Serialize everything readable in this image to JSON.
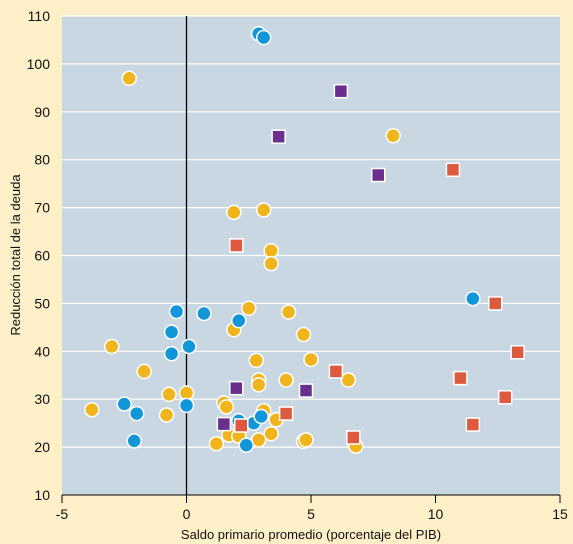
{
  "chart_data": {
    "type": "scatter",
    "title": "",
    "xlabel": "Saldo primario promedio (porcentaje del PIB)",
    "ylabel": "Reducción total de la deuda",
    "xlim": [
      -5,
      15
    ],
    "ylim": [
      10,
      110
    ],
    "x_ticks": [
      -5,
      0,
      5,
      10,
      15
    ],
    "y_ticks": [
      10,
      20,
      30,
      40,
      50,
      60,
      70,
      80,
      90,
      100,
      110
    ],
    "x_tick_labels": [
      "-5",
      "0",
      "5",
      "10",
      "15"
    ],
    "y_tick_labels": [
      "10",
      "20",
      "30",
      "40",
      "50",
      "60",
      "70",
      "80",
      "90",
      "100",
      "110"
    ],
    "grid": true,
    "zero_line_x": 0,
    "colors": {
      "plot_bg": "#c9d7e2",
      "grid": "#ffffff",
      "page_bg": "#fdf0c8",
      "yellow": "#f0b51c",
      "blue": "#1196d8",
      "purple": "#6a2f8c",
      "red": "#de5a3e"
    },
    "series": [
      {
        "marker": "circle",
        "color": "#f0b51c",
        "points": [
          [
            -2.3,
            97
          ],
          [
            8.3,
            85
          ],
          [
            1.9,
            69
          ],
          [
            3.1,
            69.5
          ],
          [
            3.4,
            61
          ],
          [
            3.4,
            58.3
          ],
          [
            2.5,
            49
          ],
          [
            4.1,
            48.2
          ],
          [
            1.9,
            44.5
          ],
          [
            4.7,
            43.5
          ],
          [
            -3.0,
            41
          ],
          [
            2.8,
            38.1
          ],
          [
            5.0,
            38.3
          ],
          [
            -1.7,
            35.8
          ],
          [
            2.9,
            34
          ],
          [
            4.0,
            34
          ],
          [
            6.5,
            34
          ],
          [
            2.9,
            33
          ],
          [
            -0.7,
            31
          ],
          [
            0.0,
            31.3
          ],
          [
            1.5,
            29.2
          ],
          [
            1.6,
            28.4
          ],
          [
            -3.8,
            27.8
          ],
          [
            3.1,
            27.6
          ],
          [
            -0.8,
            26.7
          ],
          [
            3.6,
            25.7
          ],
          [
            1.7,
            22.5
          ],
          [
            2.1,
            22.3
          ],
          [
            3.4,
            22.8
          ],
          [
            2.9,
            21.5
          ],
          [
            4.7,
            21.2
          ],
          [
            4.8,
            21.5
          ],
          [
            1.2,
            20.7
          ],
          [
            6.8,
            20.2
          ]
        ]
      },
      {
        "marker": "circle",
        "color": "#1196d8",
        "points": [
          [
            2.9,
            106.3
          ],
          [
            3.1,
            105.5
          ],
          [
            11.5,
            51
          ],
          [
            -0.4,
            48.3
          ],
          [
            0.7,
            47.9
          ],
          [
            2.1,
            46.4
          ],
          [
            -0.6,
            44
          ],
          [
            0.1,
            41
          ],
          [
            -0.6,
            39.5
          ],
          [
            -2.5,
            29
          ],
          [
            -0.0,
            28.7
          ],
          [
            -2.0,
            27
          ],
          [
            2.1,
            25.5
          ],
          [
            2.7,
            25
          ],
          [
            3.0,
            26.4
          ],
          [
            -2.1,
            21.3
          ],
          [
            2.4,
            20.4
          ]
        ]
      },
      {
        "marker": "square",
        "color": "#6a2f8c",
        "points": [
          [
            6.2,
            94.3
          ],
          [
            3.7,
            84.8
          ],
          [
            7.7,
            76.8
          ],
          [
            2.0,
            32.3
          ],
          [
            4.8,
            31.8
          ],
          [
            1.5,
            24.8
          ]
        ]
      },
      {
        "marker": "square",
        "color": "#de5a3e",
        "points": [
          [
            10.7,
            77.9
          ],
          [
            2.0,
            62.1
          ],
          [
            12.4,
            50
          ],
          [
            13.3,
            39.8
          ],
          [
            6.0,
            35.8
          ],
          [
            11.0,
            34.4
          ],
          [
            12.8,
            30.4
          ],
          [
            4.0,
            27
          ],
          [
            2.2,
            24.5
          ],
          [
            11.5,
            24.7
          ],
          [
            6.7,
            22
          ]
        ]
      }
    ]
  }
}
